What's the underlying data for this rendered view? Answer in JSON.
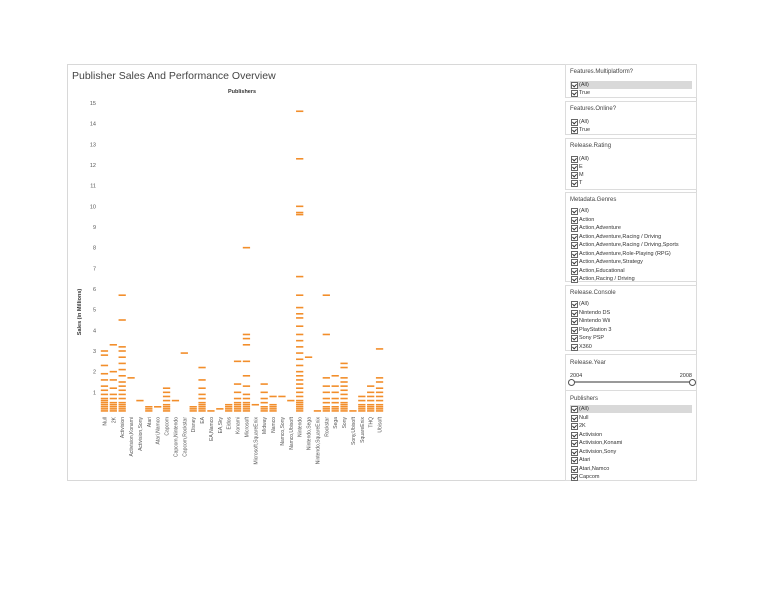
{
  "page_title": "Publisher Sales And Performance Overview",
  "chart_data": {
    "type": "bar",
    "title": "Publisher Sales And Performance Overview",
    "column_header": "Publishers",
    "ylabel": "Sales (in Millions)",
    "ylim": [
      0,
      15
    ],
    "yticks": [
      1,
      2,
      3,
      4,
      5,
      6,
      7,
      8,
      9,
      10,
      11,
      12,
      13,
      14,
      15
    ],
    "grid": false,
    "bar_color": "#F28E2B",
    "categories": [
      "Null",
      "2K",
      "Activision",
      "Activision,Konami",
      "Activision,Sony",
      "Atari",
      "Atari,Namco",
      "Capcom",
      "Capcom,Nintendo",
      "Capcom,Rockstar",
      "Disney",
      "EA",
      "EA,Namco",
      "EA,Sky",
      "Eidos",
      "Konami",
      "Microsoft",
      "Microsoft,SquareEnix",
      "Midway",
      "Namco",
      "Namco,Sony",
      "Namco,Ubisoft",
      "Nintendo",
      "Nintendo,Sega",
      "Nintendo,SquareEnix",
      "Rockstar",
      "Sega",
      "Sony",
      "Sony,Ubisoft",
      "SquareEnix",
      "THQ",
      "Ubisoft"
    ],
    "series": [
      {
        "values": [
          [
            3.0,
            2.8,
            2.3,
            1.9,
            1.6,
            1.3,
            1.1,
            0.9,
            0.7,
            0.6,
            0.5,
            0.4,
            0.3,
            0.2,
            0.1
          ],
          [
            3.3,
            2.0,
            1.6,
            1.2,
            0.9,
            0.7,
            0.5,
            0.4,
            0.3,
            0.2,
            0.1
          ],
          [
            5.7,
            4.5,
            3.2,
            3.0,
            2.7,
            2.4,
            2.1,
            1.8,
            1.5,
            1.3,
            1.1,
            0.9,
            0.7,
            0.5,
            0.4,
            0.3,
            0.2,
            0.1
          ],
          [
            1.7
          ],
          [
            0.6
          ],
          [
            0.3,
            0.2,
            0.1
          ],
          [
            0.3
          ],
          [
            1.2,
            1.0,
            0.8,
            0.6,
            0.4,
            0.3,
            0.2,
            0.1
          ],
          [
            0.6
          ],
          [
            2.9
          ],
          [
            0.3,
            0.2,
            0.1
          ],
          [
            2.2,
            1.6,
            1.2,
            0.9,
            0.7,
            0.5,
            0.4,
            0.3,
            0.2,
            0.1
          ],
          [
            0.1
          ],
          [
            0.2
          ],
          [
            0.4,
            0.3,
            0.2,
            0.1
          ],
          [
            2.5,
            1.4,
            1.0,
            0.7,
            0.5,
            0.4,
            0.3,
            0.2,
            0.1
          ],
          [
            8.0,
            3.8,
            3.6,
            3.3,
            2.5,
            1.8,
            1.3,
            0.9,
            0.7,
            0.5,
            0.4,
            0.3,
            0.2,
            0.1
          ],
          [
            0.4
          ],
          [
            1.4,
            1.0,
            0.7,
            0.5,
            0.3,
            0.2,
            0.1
          ],
          [
            0.8,
            0.4,
            0.3,
            0.2,
            0.1
          ],
          [
            0.8
          ],
          [
            0.6
          ],
          [
            14.6,
            12.3,
            10.0,
            9.7,
            9.6,
            6.6,
            5.7,
            5.1,
            4.8,
            4.6,
            4.2,
            3.8,
            3.5,
            3.2,
            2.9,
            2.6,
            2.3,
            2.0,
            1.8,
            1.6,
            1.4,
            1.2,
            1.0,
            0.8,
            0.6,
            0.5,
            0.4,
            0.3,
            0.2,
            0.1
          ],
          [
            2.7
          ],
          [
            0.1
          ],
          [
            5.7,
            3.8,
            1.7,
            1.3,
            1.0,
            0.7,
            0.5,
            0.3,
            0.2,
            0.1
          ],
          [
            1.8,
            1.3,
            1.0,
            0.7,
            0.5,
            0.3,
            0.2,
            0.1
          ],
          [
            2.4,
            2.2,
            1.7,
            1.5,
            1.3,
            1.1,
            0.9,
            0.7,
            0.5,
            0.4,
            0.3,
            0.2,
            0.1
          ],
          [
            0.1
          ],
          [
            0.8,
            0.6,
            0.4,
            0.3,
            0.2,
            0.1
          ],
          [
            1.3,
            1.0,
            0.8,
            0.6,
            0.4,
            0.3,
            0.2,
            0.1
          ],
          [
            3.1,
            1.7,
            1.5,
            1.2,
            1.0,
            0.8,
            0.6,
            0.4,
            0.3,
            0.2,
            0.1
          ]
        ]
      }
    ]
  },
  "filters": {
    "multiplatform": {
      "title": "Features.Multiplatform?",
      "options": [
        "(All)",
        "True"
      ]
    },
    "online": {
      "title": "Features.Online?",
      "options": [
        "(All)",
        "True"
      ]
    },
    "rating": {
      "title": "Release.Rating",
      "options": [
        "(All)",
        "E",
        "M",
        "T"
      ]
    },
    "genres": {
      "title": "Metadata.Genres",
      "options": [
        "(All)",
        "Action",
        "Action,Adventure",
        "Action,Adventure,Racing / Driving",
        "Action,Adventure,Racing / Driving,Sports",
        "Action,Adventure,Role-Playing (RPG)",
        "Action,Adventure,Strategy",
        "Action,Educational",
        "Action,Racing / Driving"
      ]
    },
    "console": {
      "title": "Release.Console",
      "options": [
        "(All)",
        "Nintendo DS",
        "Nintendo Wii",
        "PlayStation 3",
        "Sony PSP",
        "X360"
      ]
    },
    "year": {
      "title": "Release.Year",
      "min": "2004",
      "max": "2008",
      "range": [
        2004,
        2008
      ]
    },
    "publishers": {
      "title": "Publishers",
      "options": [
        "(All)",
        "Null",
        "2K",
        "Activision",
        "Activision,Konami",
        "Activision,Sony",
        "Atari",
        "Atari,Namco",
        "Capcom"
      ]
    }
  }
}
